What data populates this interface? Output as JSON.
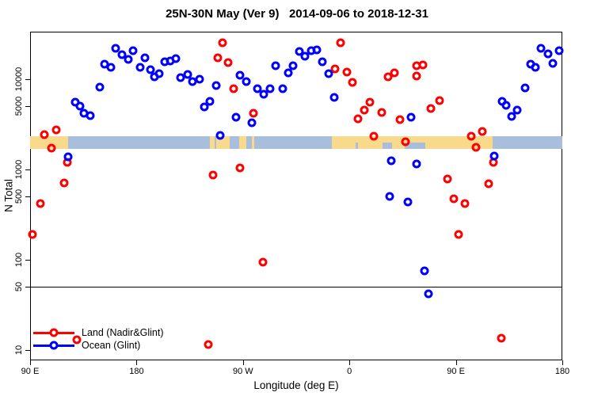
{
  "title": "25N-30N May (Ver 9)   2014-09-06 to 2018-12-31",
  "axes": {
    "x": {
      "title": "Longitude (deg E)",
      "range": [
        90,
        540
      ],
      "ticks": [
        {
          "value": 90,
          "label": "90 E"
        },
        {
          "value": 180,
          "label": "180"
        },
        {
          "value": 270,
          "label": "90 W"
        },
        {
          "value": 360,
          "label": "0"
        },
        {
          "value": 450,
          "label": "90 E"
        },
        {
          "value": 540,
          "label": "180"
        }
      ]
    },
    "y": {
      "title": "N Total",
      "scale": "log",
      "range": [
        7.7,
        33600
      ],
      "ticks": [
        {
          "value": 10,
          "label": "10"
        },
        {
          "value": 50,
          "label": "50"
        },
        {
          "value": 100,
          "label": "100"
        },
        {
          "value": 500,
          "label": "500"
        },
        {
          "value": 1000,
          "label": "1000"
        },
        {
          "value": 5000,
          "label": "5000"
        },
        {
          "value": 10000,
          "label": "10000"
        }
      ]
    }
  },
  "reference_line": {
    "y": 50,
    "color": "#000000"
  },
  "map_strip": {
    "land_color": "#F9D98C",
    "ocean_color": "#A9BEDB",
    "n_range": [
      1660,
      2280
    ],
    "segments": [
      {
        "from": 90,
        "to": 122,
        "type": "land"
      },
      {
        "from": 122,
        "to": 242,
        "type": "ocean"
      },
      {
        "from": 242,
        "to": 246,
        "type": "land"
      },
      {
        "from": 246,
        "to": 247.5,
        "type": "ocean"
      },
      {
        "from": 247.5,
        "to": 259,
        "type": "land"
      },
      {
        "from": 259,
        "to": 267,
        "type": "ocean"
      },
      {
        "from": 267,
        "to": 273,
        "type": "land"
      },
      {
        "from": 273,
        "to": 277.5,
        "type": "ocean"
      },
      {
        "from": 277.5,
        "to": 279.5,
        "type": "land"
      },
      {
        "from": 279.5,
        "to": 345,
        "type": "ocean"
      },
      {
        "from": 345,
        "to": 481,
        "type": "land"
      },
      {
        "from": 481,
        "to": 540,
        "type": "ocean"
      }
    ],
    "ocean_notches": [
      [
        365.5,
        367.5
      ],
      [
        388,
        396
      ],
      [
        407,
        424
      ]
    ]
  },
  "legend": {
    "items": [
      {
        "label": "Land (Nadir&Glint)",
        "color": "#FF0000"
      },
      {
        "label": "Ocean (Glint)",
        "color": "#0000FF"
      }
    ]
  },
  "chart_data": {
    "type": "scatter",
    "title": "25N-30N May (Ver 9)   2014-09-06 to 2018-12-31",
    "xlabel": "Longitude (deg E)",
    "ylabel": "N Total",
    "x_note": "longitude axis runs 90E eastward wrapping: 90,180,-90(270),0(360),90(450),180(540)",
    "xlim": [
      90,
      540
    ],
    "ylim_log": [
      7.7,
      33600
    ],
    "series": [
      {
        "name": "Land (Nadir&Glint)",
        "color": "#FF0000",
        "points": [
          [
            102,
            2430
          ],
          [
            112,
            2740
          ],
          [
            108,
            1720
          ],
          [
            121.5,
            1190
          ],
          [
            119,
            710
          ],
          [
            99,
            420
          ],
          [
            92,
            190
          ],
          [
            129.5,
            13
          ],
          [
            241,
            11.5
          ],
          [
            245,
            870
          ],
          [
            253,
            25300
          ],
          [
            249,
            17200
          ],
          [
            257.5,
            15300
          ],
          [
            262,
            7850
          ],
          [
            267.5,
            1040
          ],
          [
            279,
            4200
          ],
          [
            287,
            94
          ],
          [
            352.5,
            25300
          ],
          [
            348,
            13000
          ],
          [
            358,
            12000
          ],
          [
            362.5,
            9200
          ],
          [
            377,
            5560
          ],
          [
            372.5,
            4540
          ],
          [
            367,
            3630
          ],
          [
            387,
            4280
          ],
          [
            392.5,
            10600
          ],
          [
            398,
            11700
          ],
          [
            403,
            3560
          ],
          [
            380.5,
            2350
          ],
          [
            407.5,
            2020
          ],
          [
            417,
            14200
          ],
          [
            422,
            14500
          ],
          [
            417,
            10900
          ],
          [
            429,
            4720
          ],
          [
            436,
            5800
          ],
          [
            443,
            790
          ],
          [
            448.5,
            475
          ],
          [
            457.5,
            420
          ],
          [
            452.5,
            190
          ],
          [
            463,
            2330
          ],
          [
            472.5,
            2630
          ],
          [
            467,
            1760
          ],
          [
            482,
            1190
          ],
          [
            478,
            695
          ],
          [
            488.5,
            13.5
          ]
        ]
      },
      {
        "name": "Ocean (Glint)",
        "color": "#0000FF",
        "points": [
          [
            122,
            1380
          ],
          [
            128,
            5560
          ],
          [
            132,
            5000
          ],
          [
            135.5,
            4190
          ],
          [
            141,
            3940
          ],
          [
            149,
            8150
          ],
          [
            153,
            14700
          ],
          [
            158.5,
            13600
          ],
          [
            162.5,
            22200
          ],
          [
            168,
            18700
          ],
          [
            173,
            16600
          ],
          [
            177,
            20800
          ],
          [
            183,
            13600
          ],
          [
            187,
            17300
          ],
          [
            192,
            12800
          ],
          [
            195,
            10600
          ],
          [
            199,
            11600
          ],
          [
            204,
            15600
          ],
          [
            208.5,
            15900
          ],
          [
            213,
            16900
          ],
          [
            217,
            10400
          ],
          [
            223.5,
            11300
          ],
          [
            227.5,
            9400
          ],
          [
            233.5,
            10000
          ],
          [
            237.5,
            4900
          ],
          [
            242,
            5670
          ],
          [
            247.5,
            8500
          ],
          [
            251,
            2380
          ],
          [
            264,
            3790
          ],
          [
            267.5,
            11100
          ],
          [
            273,
            9400
          ],
          [
            277.5,
            3290
          ],
          [
            282,
            7850
          ],
          [
            287.5,
            6800
          ],
          [
            293,
            7850
          ],
          [
            297.5,
            14200
          ],
          [
            303.5,
            7850
          ],
          [
            308.5,
            11700
          ],
          [
            312.5,
            14200
          ],
          [
            318,
            20400
          ],
          [
            322.5,
            18000
          ],
          [
            328,
            20800
          ],
          [
            332.5,
            21200
          ],
          [
            337,
            15600
          ],
          [
            342.5,
            11600
          ],
          [
            347,
            6280
          ],
          [
            394,
            505
          ],
          [
            395.5,
            1250
          ],
          [
            409.5,
            437
          ],
          [
            412,
            3790
          ],
          [
            417,
            1150
          ],
          [
            423.5,
            75
          ],
          [
            427,
            42
          ],
          [
            482.5,
            1410
          ],
          [
            489,
            5670
          ],
          [
            492.5,
            5110
          ],
          [
            497,
            3850
          ],
          [
            502,
            4540
          ],
          [
            508.5,
            8000
          ],
          [
            513,
            14700
          ],
          [
            517,
            13600
          ],
          [
            522,
            22200
          ],
          [
            528,
            19200
          ],
          [
            532,
            15100
          ],
          [
            537.5,
            20800
          ]
        ]
      }
    ]
  }
}
